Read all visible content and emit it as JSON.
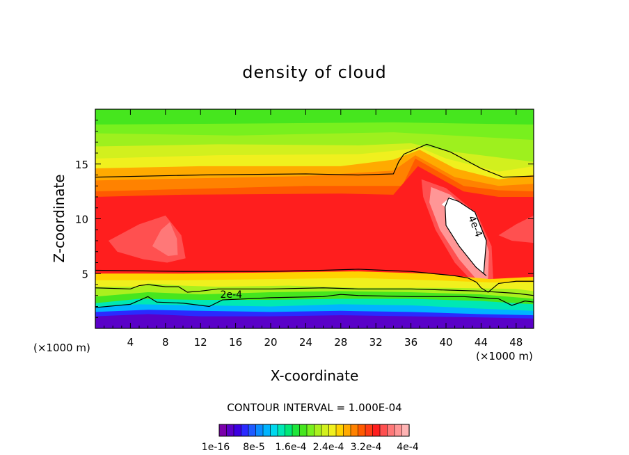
{
  "chart_data": {
    "type": "heatmap",
    "title": "density of cloud",
    "xlabel": "X-coordinate",
    "ylabel": "Z-coordinate",
    "x_unit_left": "(×1000 m)",
    "x_unit_right": "(×1000 m)",
    "xlim": [
      0,
      50
    ],
    "ylim": [
      0,
      20
    ],
    "xticks": [
      4,
      8,
      12,
      16,
      20,
      24,
      28,
      32,
      36,
      40,
      44,
      48
    ],
    "yticks": [
      5,
      10,
      15
    ],
    "contour_interval_text": "CONTOUR INTERVAL = 1.000E-04",
    "contour_labels": [
      {
        "text": "2e-4",
        "x": 15.5,
        "z": 2.8
      },
      {
        "text": "4e-4",
        "x": 43.0,
        "z": 9.2
      }
    ],
    "colorbar": {
      "min": 1e-16,
      "max": 0.0004,
      "tick_labels": [
        "1e-16",
        "8e-5",
        "1.6e-4",
        "2.4e-4",
        "3.2e-4",
        "4e-4"
      ],
      "colors": [
        "#7a00aa",
        "#5a00c8",
        "#3c00e0",
        "#2a2aff",
        "#1e5aff",
        "#0a8cff",
        "#00b4ff",
        "#00d8ee",
        "#00e8b4",
        "#00e878",
        "#1ee63c",
        "#46e61e",
        "#78f01e",
        "#aaf01e",
        "#d2f01e",
        "#f0f01e",
        "#ffd200",
        "#ffaa00",
        "#ff8200",
        "#ff5a00",
        "#ff3c14",
        "#ff1e1e",
        "#ff5050",
        "#ff7878",
        "#ff9696",
        "#ffb4b4"
      ]
    },
    "color_regions": [
      {
        "color": "#46e61e",
        "points": [
          [
            0,
            20
          ],
          [
            50,
            20
          ],
          [
            50,
            11
          ],
          [
            0,
            11
          ]
        ]
      },
      {
        "color": "#78f01e",
        "points": [
          [
            0,
            18.6
          ],
          [
            18,
            18.7
          ],
          [
            34,
            18.8
          ],
          [
            50,
            18.6
          ],
          [
            50,
            11
          ],
          [
            0,
            11
          ]
        ]
      },
      {
        "color": "#9ef01e",
        "points": [
          [
            0,
            17.8
          ],
          [
            16,
            17.6
          ],
          [
            34,
            17.9
          ],
          [
            50,
            17.2
          ],
          [
            50,
            11
          ],
          [
            0,
            11
          ]
        ]
      },
      {
        "color": "#d2f01e",
        "points": [
          [
            0,
            16.6
          ],
          [
            14,
            16.8
          ],
          [
            30,
            16.7
          ],
          [
            36,
            16.9
          ],
          [
            40,
            16.2
          ],
          [
            50,
            15.2
          ],
          [
            50,
            11
          ],
          [
            0,
            11
          ]
        ]
      },
      {
        "color": "#f0f01e",
        "points": [
          [
            0,
            15.5
          ],
          [
            14,
            15.8
          ],
          [
            30,
            15.9
          ],
          [
            34,
            16.2
          ],
          [
            37,
            16.5
          ],
          [
            40,
            15.5
          ],
          [
            46,
            14.3
          ],
          [
            50,
            14.8
          ],
          [
            50,
            11
          ],
          [
            0,
            11
          ]
        ]
      },
      {
        "color": "#ffaa00",
        "points": [
          [
            0,
            14.6
          ],
          [
            12,
            14.8
          ],
          [
            28,
            14.8
          ],
          [
            34,
            15.4
          ],
          [
            37,
            16.3
          ],
          [
            41,
            14.6
          ],
          [
            46,
            13.6
          ],
          [
            50,
            14.0
          ],
          [
            50,
            11
          ],
          [
            0,
            11
          ]
        ]
      },
      {
        "color": "#ff8200",
        "points": [
          [
            0,
            13.5
          ],
          [
            24,
            13.9
          ],
          [
            34,
            14.4
          ],
          [
            36.5,
            15.8
          ],
          [
            41,
            13.8
          ],
          [
            46,
            13.0
          ],
          [
            50,
            13.2
          ],
          [
            50,
            3.7
          ],
          [
            0,
            3.7
          ]
        ]
      },
      {
        "color": "#ff5a00",
        "points": [
          [
            0,
            12.5
          ],
          [
            24,
            13.0
          ],
          [
            35,
            13.0
          ],
          [
            36.5,
            15.5
          ],
          [
            42,
            13.0
          ],
          [
            46,
            12.6
          ],
          [
            50,
            12.5
          ],
          [
            50,
            4.0
          ],
          [
            0,
            4.0
          ]
        ]
      },
      {
        "color": "#ff1e1e",
        "points": [
          [
            0,
            12.0
          ],
          [
            10,
            12.2
          ],
          [
            28,
            12.3
          ],
          [
            34,
            12.2
          ],
          [
            36.8,
            14.8
          ],
          [
            42,
            12.5
          ],
          [
            46,
            12.0
          ],
          [
            50,
            12.0
          ],
          [
            50,
            4.7
          ],
          [
            45,
            4.5
          ],
          [
            38,
            5.0
          ],
          [
            30,
            5.2
          ],
          [
            20,
            5.1
          ],
          [
            10,
            5.0
          ],
          [
            0,
            5.0
          ]
        ]
      },
      {
        "color": "#ff5050",
        "points": [
          [
            1.5,
            8.0
          ],
          [
            5,
            9.5
          ],
          [
            8,
            10.3
          ],
          [
            9.8,
            8.5
          ],
          [
            10.3,
            6.4
          ],
          [
            8.2,
            6.0
          ],
          [
            5.5,
            6.3
          ],
          [
            2.5,
            7.0
          ]
        ]
      },
      {
        "color": "#ff7878",
        "points": [
          [
            6.5,
            7.5
          ],
          [
            7.5,
            9.0
          ],
          [
            8.5,
            9.7
          ],
          [
            9.3,
            8.2
          ],
          [
            9.4,
            6.7
          ],
          [
            8.3,
            6.6
          ]
        ]
      },
      {
        "color": "#ff5050",
        "points": [
          [
            37.2,
            13.6
          ],
          [
            40,
            12.8
          ],
          [
            43.5,
            10.5
          ],
          [
            45.2,
            7.5
          ],
          [
            45.4,
            4.2
          ],
          [
            44.8,
            3.2
          ],
          [
            43.8,
            3.6
          ],
          [
            41,
            6.0
          ],
          [
            38.8,
            9.0
          ],
          [
            37.4,
            12.0
          ]
        ]
      },
      {
        "color": "#ff9696",
        "points": [
          [
            38.3,
            12.9
          ],
          [
            40.5,
            12.2
          ],
          [
            43.8,
            9.8
          ],
          [
            44.9,
            7.0
          ],
          [
            44.8,
            4.6
          ],
          [
            44.2,
            3.8
          ],
          [
            41.5,
            6.3
          ],
          [
            39.3,
            9.0
          ],
          [
            38.1,
            11.5
          ]
        ]
      },
      {
        "color": "#ff5050",
        "points": [
          [
            46,
            8.5
          ],
          [
            48,
            9.5
          ],
          [
            50,
            10.3
          ],
          [
            50,
            7.8
          ],
          [
            47.5,
            8.0
          ]
        ]
      },
      {
        "color": "#ffd200",
        "points": [
          [
            0,
            5.0
          ],
          [
            10,
            5.0
          ],
          [
            20,
            5.1
          ],
          [
            30,
            5.2
          ],
          [
            38,
            5.0
          ],
          [
            45,
            4.5
          ],
          [
            50,
            4.7
          ],
          [
            50,
            1.3
          ],
          [
            0,
            1.3
          ]
        ]
      },
      {
        "color": "#f0f01e",
        "points": [
          [
            0,
            4.4
          ],
          [
            10,
            4.4
          ],
          [
            20,
            4.5
          ],
          [
            30,
            4.6
          ],
          [
            38,
            4.4
          ],
          [
            45,
            4.2
          ],
          [
            50,
            4.2
          ],
          [
            50,
            1.3
          ],
          [
            0,
            1.3
          ]
        ]
      },
      {
        "color": "#aaf01e",
        "points": [
          [
            0,
            3.8
          ],
          [
            5,
            3.8
          ],
          [
            6,
            4.1
          ],
          [
            10,
            3.9
          ],
          [
            14,
            3.8
          ],
          [
            22,
            3.9
          ],
          [
            30,
            3.7
          ],
          [
            40,
            3.7
          ],
          [
            48,
            3.6
          ],
          [
            50,
            3.4
          ],
          [
            50,
            1.3
          ],
          [
            0,
            1.3
          ]
        ]
      },
      {
        "color": "#46e61e",
        "points": [
          [
            0,
            2.9
          ],
          [
            6,
            3.3
          ],
          [
            12,
            3.1
          ],
          [
            20,
            3.3
          ],
          [
            28,
            3.4
          ],
          [
            36,
            3.3
          ],
          [
            44,
            3.1
          ],
          [
            50,
            2.7
          ],
          [
            50,
            1.3
          ],
          [
            0,
            1.3
          ]
        ]
      },
      {
        "color": "#00e8b4",
        "points": [
          [
            0,
            2.3
          ],
          [
            5,
            2.7
          ],
          [
            12,
            2.6
          ],
          [
            20,
            2.6
          ],
          [
            28,
            2.7
          ],
          [
            36,
            2.7
          ],
          [
            44,
            2.5
          ],
          [
            50,
            2.2
          ],
          [
            50,
            1.3
          ],
          [
            0,
            1.3
          ]
        ]
      },
      {
        "color": "#00b4ff",
        "points": [
          [
            0,
            1.9
          ],
          [
            5,
            2.2
          ],
          [
            12,
            2.1
          ],
          [
            20,
            2.0
          ],
          [
            28,
            2.2
          ],
          [
            36,
            2.1
          ],
          [
            44,
            1.8
          ],
          [
            50,
            1.6
          ],
          [
            50,
            0
          ],
          [
            0,
            0
          ]
        ]
      },
      {
        "color": "#2a2aff",
        "points": [
          [
            0,
            1.5
          ],
          [
            6,
            1.7
          ],
          [
            12,
            1.6
          ],
          [
            20,
            1.5
          ],
          [
            28,
            1.6
          ],
          [
            36,
            1.5
          ],
          [
            44,
            1.3
          ],
          [
            50,
            1.2
          ],
          [
            50,
            0
          ],
          [
            0,
            0
          ]
        ]
      },
      {
        "color": "#5a00c8",
        "points": [
          [
            0,
            1.1
          ],
          [
            6,
            1.3
          ],
          [
            12,
            1.1
          ],
          [
            20,
            1.1
          ],
          [
            28,
            1.2
          ],
          [
            36,
            1.1
          ],
          [
            44,
            1.0
          ],
          [
            50,
            0.9
          ],
          [
            50,
            0
          ],
          [
            0,
            0
          ]
        ]
      },
      {
        "color": "#ffffff",
        "points": [
          [
            39.5,
            11.3
          ],
          [
            40.5,
            12.0
          ],
          [
            41.4,
            11.6
          ],
          [
            43.3,
            10.6
          ],
          [
            44.6,
            8.0
          ],
          [
            44.3,
            5.0
          ],
          [
            44.6,
            4.8
          ],
          [
            43.4,
            5.6
          ],
          [
            41.5,
            7.5
          ],
          [
            40,
            9.4
          ],
          [
            39.9,
            11.1
          ]
        ]
      }
    ],
    "contour_lines": [
      [
        [
          0,
          13.8
        ],
        [
          12,
          14.0
        ],
        [
          24,
          14.1
        ],
        [
          30,
          14.0
        ],
        [
          34,
          14.1
        ],
        [
          34.6,
          15.2
        ],
        [
          35.2,
          15.9
        ],
        [
          37.8,
          16.8
        ],
        [
          40.5,
          16.1
        ],
        [
          44,
          14.6
        ],
        [
          46.5,
          13.8
        ],
        [
          50,
          13.9
        ]
      ],
      [
        [
          0,
          5.3
        ],
        [
          10,
          5.2
        ],
        [
          20,
          5.2
        ],
        [
          26,
          5.3
        ],
        [
          30,
          5.4
        ],
        [
          36,
          5.2
        ],
        [
          41,
          4.8
        ],
        [
          42.5,
          4.6
        ],
        [
          43.5,
          4.2
        ],
        [
          44,
          3.7
        ],
        [
          44.8,
          3.3
        ],
        [
          46,
          4.1
        ],
        [
          48,
          4.3
        ],
        [
          50,
          4.3
        ]
      ],
      [
        [
          0,
          3.7
        ],
        [
          4,
          3.6
        ],
        [
          5,
          3.9
        ],
        [
          6,
          4.0
        ],
        [
          8,
          3.8
        ],
        [
          9.5,
          3.8
        ],
        [
          10.5,
          3.3
        ],
        [
          12,
          3.4
        ],
        [
          14,
          3.6
        ],
        [
          20,
          3.6
        ],
        [
          26,
          3.7
        ],
        [
          30,
          3.6
        ],
        [
          36,
          3.6
        ],
        [
          40,
          3.5
        ],
        [
          44,
          3.4
        ],
        [
          48,
          3.2
        ],
        [
          50,
          3.0
        ]
      ],
      [
        [
          0,
          1.9
        ],
        [
          4,
          2.2
        ],
        [
          6,
          2.9
        ],
        [
          7,
          2.4
        ],
        [
          10,
          2.3
        ],
        [
          13,
          2.0
        ],
        [
          14.5,
          2.6
        ],
        [
          20,
          2.8
        ],
        [
          26,
          2.9
        ],
        [
          28,
          3.1
        ],
        [
          30,
          3.0
        ],
        [
          36,
          2.9
        ],
        [
          42,
          2.9
        ],
        [
          46,
          2.7
        ],
        [
          47.5,
          2.1
        ],
        [
          49,
          2.5
        ],
        [
          50,
          2.4
        ]
      ],
      [
        [
          40.3,
          11.9
        ],
        [
          41.4,
          11.6
        ],
        [
          43.3,
          10.6
        ],
        [
          44.6,
          8.0
        ],
        [
          44.3,
          5.0
        ],
        [
          44.6,
          4.8
        ],
        [
          43.4,
          5.6
        ],
        [
          41.5,
          7.5
        ],
        [
          40,
          9.4
        ],
        [
          39.9,
          11.1
        ],
        [
          40.3,
          11.9
        ]
      ]
    ]
  }
}
